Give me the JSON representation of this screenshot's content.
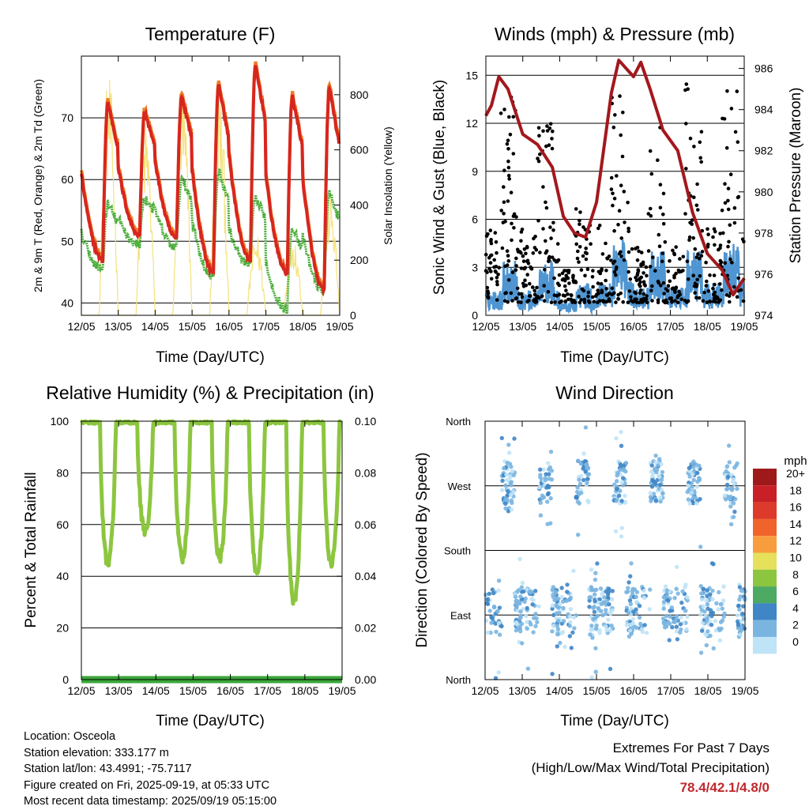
{
  "time_ticks": [
    "12/05",
    "13/05",
    "14/05",
    "15/05",
    "16/05",
    "17/05",
    "18/05",
    "19/05"
  ],
  "colors": {
    "temp2m": "#d7261f",
    "temp9m": "#f07c26",
    "dewpoint": "#4cae3c",
    "solar": "#f4e27a",
    "wind": "#4f95d1",
    "gust": "#000000",
    "pressure": "#a3181d",
    "rh": "#8cc63f",
    "precip": "#3aa63a",
    "extremes": "#c0282d"
  },
  "legend": {
    "title": "mph",
    "labels": [
      "20+",
      "18",
      "16",
      "14",
      "12",
      "10",
      "8",
      "6",
      "4",
      "2",
      "0"
    ],
    "colors": [
      "#9e1a1a",
      "#c82026",
      "#dc3a2a",
      "#f0642c",
      "#f79d3e",
      "#e6e05a",
      "#8cc63f",
      "#4caa62",
      "#3f86c6",
      "#7ab5e0",
      "#bfe3f7"
    ]
  },
  "info": {
    "location": "Location: Osceola",
    "elevation": "Station elevation: 333.177 m",
    "latlon": "Station lat/lon: 43.4991; -75.7117",
    "created": "Figure created on Fri, 2025-09-19, at 05:33 UTC",
    "recent": "Most recent data timestamp: 2025/09/19 05:15:00"
  },
  "extremes": {
    "line1": "Extremes For Past 7 Days",
    "line2": "(High/Low/Max Wind/Total Precipitation)",
    "values": "78.4/42.1/4.8/0"
  },
  "chart_data": [
    {
      "id": "temperature",
      "type": "line",
      "title": "Temperature (F)",
      "xlabel": "Time (Day/UTC)",
      "ylabel": "2m & 9m T (Red, Orange) & 2m Td (Green)",
      "y2label": "Solar Insolation (Yellow)",
      "xlim": [
        0,
        7
      ],
      "ylim": [
        38,
        80
      ],
      "y2lim": [
        0,
        940
      ],
      "yticks": [
        40,
        50,
        60,
        70
      ],
      "y2ticks": [
        0,
        200,
        400,
        600,
        800
      ],
      "daily_max_temp": [
        72.5,
        71.0,
        73.5,
        75.5,
        78.4,
        73.5,
        75.0
      ],
      "daily_min_temp": [
        47.0,
        51.0,
        50.5,
        45.0,
        47.0,
        45.0,
        42.1
      ],
      "daily_max_dewpoint": [
        56.0,
        57.0,
        60.0,
        61.5,
        57.0,
        52.5,
        58.0
      ],
      "daily_min_dewpoint": [
        45.5,
        49.5,
        49.0,
        44.0,
        46.0,
        39.0,
        42.0
      ],
      "daily_peak_solar": [
        880,
        720,
        820,
        830,
        300,
        300,
        450
      ],
      "grid": true
    },
    {
      "id": "winds",
      "type": "line",
      "title": "Winds (mph) & Pressure (mb)",
      "xlabel": "Time (Day/UTC)",
      "ylabel": "Sonic Wind & Gust (Blue, Black)",
      "y2label": "Station Pressure (Maroon)",
      "xlim": [
        0,
        7
      ],
      "ylim": [
        0,
        16.2
      ],
      "y2lim": [
        974,
        986.6
      ],
      "yticks": [
        0,
        3,
        6,
        9,
        12,
        15
      ],
      "y2ticks": [
        974,
        976,
        978,
        980,
        982,
        984,
        986
      ],
      "pressure": {
        "x": [
          0,
          0.15,
          0.35,
          0.6,
          1.0,
          1.4,
          1.8,
          2.1,
          2.4,
          2.7,
          3.0,
          3.4,
          3.6,
          4.0,
          4.2,
          4.45,
          4.8,
          5.2,
          5.6,
          6.0,
          6.4,
          6.7,
          7.0
        ],
        "y": [
          983.7,
          984.2,
          985.6,
          985.0,
          982.8,
          982.3,
          981.2,
          978.8,
          978.0,
          977.8,
          979.5,
          984.8,
          986.4,
          985.6,
          986.3,
          985.0,
          983.0,
          982.0,
          979.0,
          977.0,
          976.2,
          975.0,
          975.8
        ]
      },
      "daily_max_gust": [
        13.5,
        12.0,
        6.0,
        14.0,
        11.0,
        14.0,
        13.5
      ],
      "daily_max_wind": [
        3.5,
        3.5,
        2.0,
        4.8,
        4.0,
        4.0,
        4.5
      ],
      "grid": true
    },
    {
      "id": "humidity",
      "type": "line",
      "title": "Relative Humidity (%) & Precipitation (in)",
      "xlabel": "Time (Day/UTC)",
      "ylabel": "Percent & Total Rainfall",
      "xlim": [
        0,
        7
      ],
      "ylim": [
        0,
        100
      ],
      "y2lim": [
        0,
        0.1
      ],
      "yticks": [
        0,
        20,
        40,
        60,
        80,
        100
      ],
      "y2ticks": [
        "0.00",
        "0.02",
        "0.04",
        "0.06",
        "0.08",
        "0.10"
      ],
      "daily_min_rh": [
        45,
        57,
        47,
        47,
        41,
        30,
        45
      ],
      "daily_max_rh": [
        100,
        100,
        100,
        100,
        100,
        100,
        100
      ],
      "total_precip": 0,
      "grid": true
    },
    {
      "id": "wind_direction",
      "type": "scatter",
      "title": "Wind Direction",
      "xlabel": "Time (Day/UTC)",
      "ylabel": "Direction (Colored By Speed)",
      "xlim": [
        0,
        7
      ],
      "ylim": [
        0,
        360
      ],
      "ytick_labels": [
        "North",
        "East",
        "South",
        "West",
        "North"
      ],
      "ytick_values": [
        0,
        90,
        180,
        270,
        360
      ],
      "grid": true
    }
  ]
}
